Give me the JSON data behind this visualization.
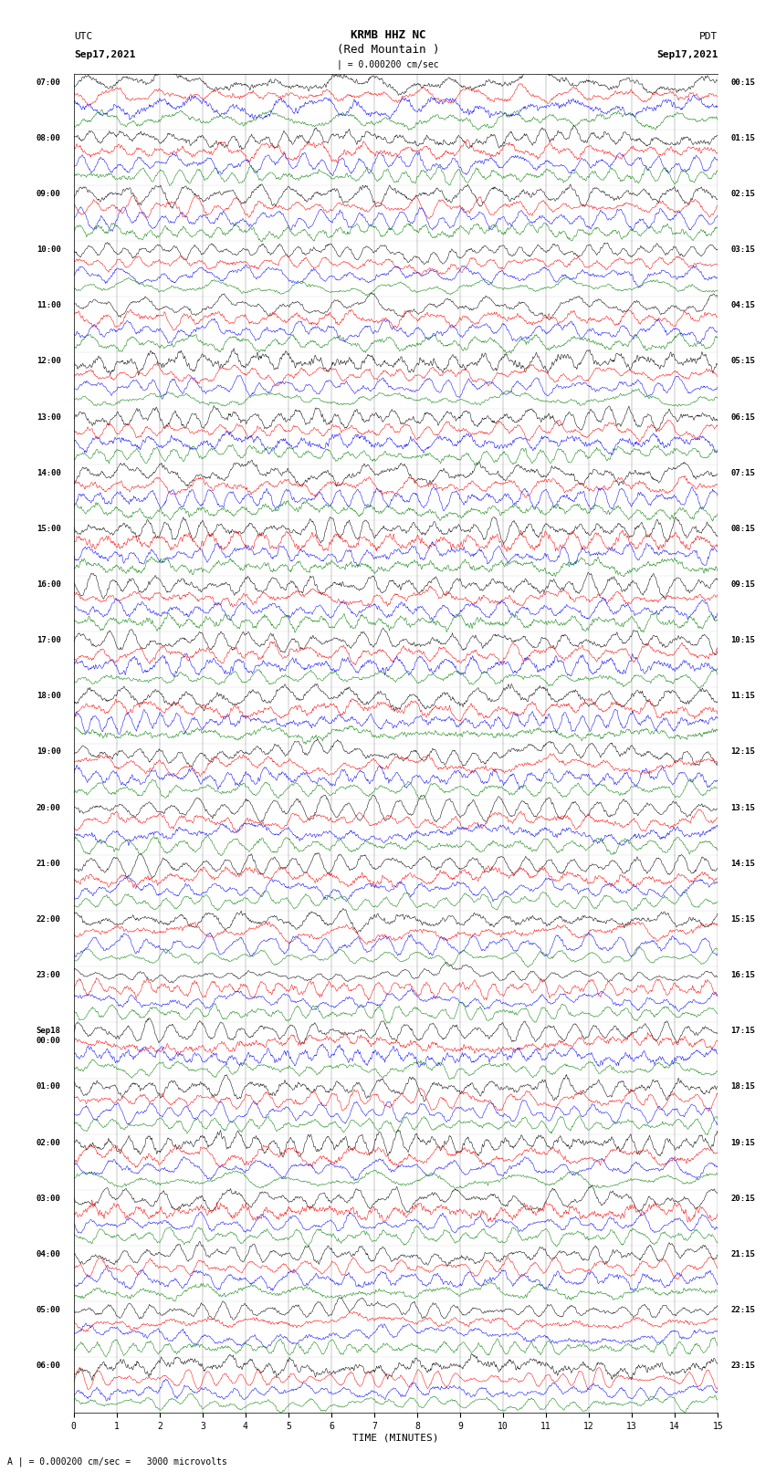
{
  "title_line1": "KRMB HHZ NC",
  "title_line2": "(Red Mountain )",
  "label_left_top": "UTC",
  "label_left_date": "Sep17,2021",
  "label_right_top": "PDT",
  "label_right_date": "Sep17,2021",
  "scale_bar_text": "| = 0.000200 cm/sec",
  "scale_annotation": "A | = 0.000200 cm/sec =   3000 microvolts",
  "xlabel": "TIME (MINUTES)",
  "time_minutes": 15,
  "left_times": [
    "07:00",
    "08:00",
    "09:00",
    "10:00",
    "11:00",
    "12:00",
    "13:00",
    "14:00",
    "15:00",
    "16:00",
    "17:00",
    "18:00",
    "19:00",
    "20:00",
    "21:00",
    "22:00",
    "23:00",
    "Sep18\n00:00",
    "01:00",
    "02:00",
    "03:00",
    "04:00",
    "05:00",
    "06:00"
  ],
  "right_times": [
    "00:15",
    "01:15",
    "02:15",
    "03:15",
    "04:15",
    "05:15",
    "06:15",
    "07:15",
    "08:15",
    "09:15",
    "10:15",
    "11:15",
    "12:15",
    "13:15",
    "14:15",
    "15:15",
    "16:15",
    "17:15",
    "18:15",
    "19:15",
    "20:15",
    "21:15",
    "22:15",
    "23:15"
  ],
  "colors": [
    "black",
    "red",
    "blue",
    "green"
  ],
  "n_rows": 24,
  "traces_per_row": 4,
  "bg_color": "white",
  "noise_amplitude": 0.18,
  "noise_amplitude_scale": [
    1.0,
    0.85,
    0.9,
    0.75
  ]
}
